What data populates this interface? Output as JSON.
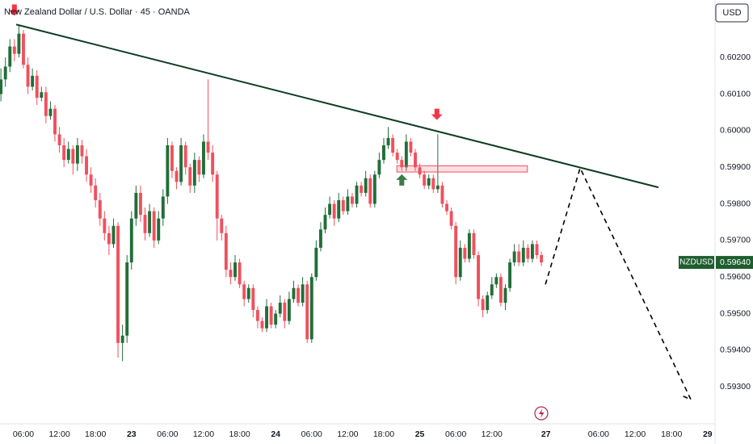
{
  "chart_data": {
    "type": "candlestick",
    "title": "New Zealand Dollar / U.S. Dollar · 45 · OANDA",
    "currency": "USD",
    "up_color": "#216e39",
    "down_color": "#f0505e",
    "grid": false,
    "xlim": [
      -0.2,
      158.55
    ],
    "ylim": [
      0.59199,
      0.60357
    ],
    "xticks": [
      {
        "value": 5,
        "label": "06:00"
      },
      {
        "value": 13,
        "label": "12:00"
      },
      {
        "value": 21,
        "label": "18:00"
      },
      {
        "value": 29,
        "label": "23"
      },
      {
        "value": 37,
        "label": "06:00"
      },
      {
        "value": 45,
        "label": "12:00"
      },
      {
        "value": 53,
        "label": "18:00"
      },
      {
        "value": 61,
        "label": "24"
      },
      {
        "value": 69,
        "label": "06:00"
      },
      {
        "value": 77,
        "label": "12:00"
      },
      {
        "value": 85,
        "label": "18:00"
      },
      {
        "value": 93,
        "label": "25"
      },
      {
        "value": 101,
        "label": "06:00"
      },
      {
        "value": 109,
        "label": "12:00"
      },
      {
        "value": 121,
        "label": "27"
      },
      {
        "value": 132.7,
        "label": "06:00"
      },
      {
        "value": 140.8,
        "label": "12:00"
      },
      {
        "value": 148.9,
        "label": "18:00"
      },
      {
        "value": 156.9,
        "label": "29"
      }
    ],
    "yticks": [
      {
        "value": 0.602,
        "label": "0.60200"
      },
      {
        "value": 0.601,
        "label": "0.60100"
      },
      {
        "value": 0.6,
        "label": "0.60000"
      },
      {
        "value": 0.599,
        "label": "0.59900"
      },
      {
        "value": 0.598,
        "label": "0.59800"
      },
      {
        "value": 0.597,
        "label": "0.59700"
      },
      {
        "value": 0.596,
        "label": "0.59600"
      },
      {
        "value": 0.595,
        "label": "0.59500"
      },
      {
        "value": 0.594,
        "label": "0.59400"
      },
      {
        "value": 0.593,
        "label": "0.59300"
      }
    ],
    "open": [
      0.601,
      0.6014,
      0.60175,
      0.6023,
      0.6021,
      0.60265,
      0.6018,
      0.6012,
      0.6015,
      0.6009,
      0.60105,
      0.6004,
      0.6006,
      0.5999,
      0.5996,
      0.5992,
      0.5995,
      0.5991,
      0.5996,
      0.5993,
      0.5988,
      0.5985,
      0.5981,
      0.5976,
      0.5972,
      0.5969,
      0.5974,
      0.5942,
      0.5944,
      0.5964,
      0.5976,
      0.5983,
      0.5977,
      0.5972,
      0.5978,
      0.597,
      0.5976,
      0.5982,
      0.5996,
      0.5989,
      0.5986,
      0.5996,
      0.599,
      0.5985,
      0.5992,
      0.5988,
      0.5997,
      0.5994,
      0.5988,
      0.5976,
      0.5972,
      0.5962,
      0.596,
      0.5964,
      0.5958,
      0.5954,
      0.5957,
      0.5951,
      0.5948,
      0.5946,
      0.5952,
      0.5947,
      0.595,
      0.5953,
      0.5948,
      0.5954,
      0.5957,
      0.5953,
      0.5958,
      0.5943,
      0.596,
      0.5968,
      0.5973,
      0.5977,
      0.598,
      0.5976,
      0.5981,
      0.5978,
      0.5982,
      0.598,
      0.5985,
      0.5983,
      0.5987,
      0.598,
      0.5988,
      0.5992,
      0.5996,
      0.5998,
      0.5994,
      0.5992,
      0.599,
      0.5997,
      0.5994,
      0.599,
      0.5988,
      0.5985,
      0.5987,
      0.5984,
      0.5985,
      0.598,
      0.5978,
      0.5974,
      0.596,
      0.5968,
      0.5965,
      0.5972,
      0.5966,
      0.5954,
      0.5951,
      0.5955,
      0.5958,
      0.596,
      0.5953,
      0.5957,
      0.5964,
      0.5967,
      0.5964,
      0.5968,
      0.5965,
      0.5969,
      0.5966
    ],
    "high": [
      0.6017,
      0.602,
      0.6025,
      0.6025,
      0.6029,
      0.60275,
      0.602,
      0.6017,
      0.60165,
      0.6012,
      0.6012,
      0.6008,
      0.6007,
      0.6001,
      0.5998,
      0.5997,
      0.5996,
      0.5998,
      0.59975,
      0.5995,
      0.599,
      0.5987,
      0.5983,
      0.5978,
      0.5974,
      0.5976,
      0.5975,
      0.5947,
      0.5966,
      0.5978,
      0.5985,
      0.5985,
      0.5979,
      0.598,
      0.5979,
      0.5978,
      0.5984,
      0.5998,
      0.5997,
      0.599,
      0.5998,
      0.5997,
      0.5991,
      0.5994,
      0.5993,
      0.5999,
      0.6014,
      0.5996,
      0.5989,
      0.5977,
      0.5974,
      0.5964,
      0.5966,
      0.5965,
      0.5959,
      0.5958,
      0.5958,
      0.5952,
      0.5949,
      0.5954,
      0.5953,
      0.5951,
      0.5955,
      0.5954,
      0.5956,
      0.5959,
      0.5958,
      0.596,
      0.5959,
      0.5961,
      0.597,
      0.5975,
      0.5979,
      0.5982,
      0.5981,
      0.5983,
      0.5982,
      0.5984,
      0.5983,
      0.5986,
      0.5986,
      0.5989,
      0.5988,
      0.5989,
      0.5994,
      0.5998,
      0.6001,
      0.5999,
      0.5995,
      0.5993,
      0.5999,
      0.5998,
      0.5995,
      0.5991,
      0.5989,
      0.5988,
      0.5988,
      0.5999,
      0.5986,
      0.5981,
      0.5979,
      0.5975,
      0.597,
      0.5969,
      0.5973,
      0.5973,
      0.5967,
      0.5955,
      0.5956,
      0.596,
      0.5961,
      0.5961,
      0.5958,
      0.5965,
      0.5969,
      0.5969,
      0.597,
      0.5969,
      0.597,
      0.597,
      0.5967
    ],
    "low": [
      0.6008,
      0.6012,
      0.6016,
      0.6019,
      0.602,
      0.6017,
      0.601,
      0.6011,
      0.6007,
      0.6008,
      0.6002,
      0.6003,
      0.5997,
      0.5994,
      0.599,
      0.5991,
      0.5988,
      0.5989,
      0.5991,
      0.5986,
      0.5983,
      0.5979,
      0.5974,
      0.597,
      0.5966,
      0.5968,
      0.5938,
      0.5937,
      0.5942,
      0.5962,
      0.5974,
      0.5975,
      0.597,
      0.5971,
      0.5968,
      0.5969,
      0.5974,
      0.598,
      0.5987,
      0.5984,
      0.5985,
      0.5988,
      0.5983,
      0.5983,
      0.5986,
      0.5987,
      0.5992,
      0.5986,
      0.597,
      0.597,
      0.596,
      0.5958,
      0.5959,
      0.5957,
      0.5952,
      0.5953,
      0.5949,
      0.5946,
      0.5945,
      0.5945,
      0.5946,
      0.5946,
      0.5949,
      0.5946,
      0.5947,
      0.5953,
      0.5952,
      0.5952,
      0.5942,
      0.5942,
      0.5959,
      0.5967,
      0.5972,
      0.5976,
      0.5974,
      0.5975,
      0.5977,
      0.5977,
      0.5979,
      0.5979,
      0.5982,
      0.5982,
      0.5979,
      0.5979,
      0.5987,
      0.5991,
      0.5995,
      0.5993,
      0.5991,
      0.5989,
      0.5989,
      0.5993,
      0.5989,
      0.5987,
      0.5984,
      0.5984,
      0.5983,
      0.5983,
      0.5979,
      0.5977,
      0.5973,
      0.5958,
      0.5959,
      0.5964,
      0.5964,
      0.5965,
      0.5952,
      0.5949,
      0.595,
      0.5954,
      0.5957,
      0.5952,
      0.5951,
      0.5956,
      0.5963,
      0.5963,
      0.5963,
      0.5964,
      0.5964,
      0.5965,
      0.5963
    ],
    "close": [
      0.6014,
      0.60175,
      0.6023,
      0.6021,
      0.60265,
      0.6018,
      0.6012,
      0.6015,
      0.6009,
      0.60105,
      0.6004,
      0.6006,
      0.5999,
      0.5996,
      0.5992,
      0.5995,
      0.5991,
      0.5996,
      0.5993,
      0.5988,
      0.5985,
      0.5981,
      0.5976,
      0.5972,
      0.5969,
      0.5974,
      0.5942,
      0.5944,
      0.5964,
      0.5976,
      0.5983,
      0.5977,
      0.5972,
      0.5978,
      0.597,
      0.5976,
      0.5982,
      0.5996,
      0.5989,
      0.5986,
      0.5996,
      0.599,
      0.5985,
      0.5992,
      0.5988,
      0.5997,
      0.5994,
      0.5988,
      0.5976,
      0.5972,
      0.5962,
      0.596,
      0.5964,
      0.5958,
      0.5954,
      0.5957,
      0.5951,
      0.5948,
      0.5946,
      0.5952,
      0.5947,
      0.595,
      0.5953,
      0.5948,
      0.5954,
      0.5957,
      0.5953,
      0.5958,
      0.5943,
      0.596,
      0.5968,
      0.5973,
      0.5977,
      0.598,
      0.5976,
      0.5981,
      0.5978,
      0.5982,
      0.598,
      0.5985,
      0.5983,
      0.5987,
      0.598,
      0.5988,
      0.5992,
      0.5996,
      0.5998,
      0.5994,
      0.5992,
      0.599,
      0.5997,
      0.5994,
      0.599,
      0.5988,
      0.5985,
      0.5987,
      0.5984,
      0.5985,
      0.598,
      0.5978,
      0.5974,
      0.596,
      0.5968,
      0.5965,
      0.5972,
      0.5966,
      0.5954,
      0.5951,
      0.5955,
      0.5958,
      0.596,
      0.5953,
      0.5957,
      0.5964,
      0.5967,
      0.5964,
      0.5968,
      0.5965,
      0.5969,
      0.5966,
      0.5964
    ],
    "last_price": {
      "symbol": "NZDUSD",
      "value": 0.5964,
      "label": "0.59640",
      "color": "#1e5e2e"
    },
    "trendline": {
      "x": [
        3.4,
        146
      ],
      "y": [
        0.6029,
        0.59845
      ],
      "color": "#0f3d22"
    },
    "zone": {
      "x": [
        87.9,
        116.9
      ],
      "y": [
        0.59887,
        0.59904
      ],
      "color": "#f0505e"
    },
    "projection": {
      "x": [
        120.9,
        128.6,
        153.2,
        151.4
      ],
      "y": [
        0.5958,
        0.59898,
        0.59265,
        0.59275
      ],
      "color": "#000000"
    },
    "markers": [
      {
        "x": 3,
        "y": 0.60345,
        "direction": "down",
        "color": "#f23645"
      },
      {
        "x": 96.8,
        "y": 0.6006,
        "direction": "down",
        "color": "#f23645"
      },
      {
        "x": 89,
        "y": 0.5985,
        "direction": "up",
        "color": "#3d7a4a"
      }
    ]
  }
}
